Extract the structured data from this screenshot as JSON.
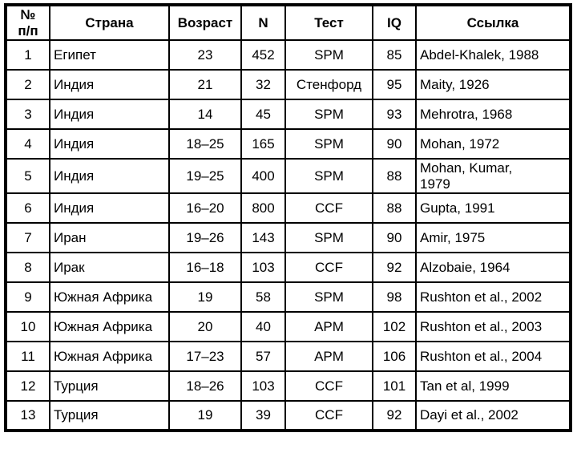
{
  "colors": {
    "background": "#ffffff",
    "border": "#000000",
    "text": "#000000"
  },
  "table": {
    "columns": [
      {
        "key": "num",
        "label": "№\nп/п"
      },
      {
        "key": "country",
        "label": "Страна"
      },
      {
        "key": "age",
        "label": "Возраст"
      },
      {
        "key": "n",
        "label": "N"
      },
      {
        "key": "test",
        "label": "Тест"
      },
      {
        "key": "iq",
        "label": "IQ"
      },
      {
        "key": "ref",
        "label": "Ссылка"
      }
    ],
    "rows": [
      {
        "num": "1",
        "country": "Египет",
        "age": "23",
        "n": "452",
        "test": "SPM",
        "iq": "85",
        "ref": "Abdel-Khalek, 1988"
      },
      {
        "num": "2",
        "country": "Индия",
        "age": "21",
        "n": "32",
        "test": "Стенфорд",
        "iq": "95",
        "ref": "Maity, 1926"
      },
      {
        "num": "3",
        "country": "Индия",
        "age": "14",
        "n": "45",
        "test": "SPM",
        "iq": "93",
        "ref": "Mehrotra, 1968"
      },
      {
        "num": "4",
        "country": "Индия",
        "age": "18–25",
        "n": "165",
        "test": "SPM",
        "iq": "90",
        "ref": "Mohan, 1972"
      },
      {
        "num": "5",
        "country": "Индия",
        "age": "19–25",
        "n": "400",
        "test": "SPM",
        "iq": "88",
        "ref": "Mohan, Kumar,\n1979"
      },
      {
        "num": "6",
        "country": "Индия",
        "age": "16–20",
        "n": "800",
        "test": "CCF",
        "iq": "88",
        "ref": "Gupta, 1991"
      },
      {
        "num": "7",
        "country": "Иран",
        "age": "19–26",
        "n": "143",
        "test": "SPM",
        "iq": "90",
        "ref": "Amir, 1975"
      },
      {
        "num": "8",
        "country": "Ирак",
        "age": "16–18",
        "n": "103",
        "test": "CCF",
        "iq": "92",
        "ref": "Alzobaie, 1964"
      },
      {
        "num": "9",
        "country": "Южная Африка",
        "age": "19",
        "n": "58",
        "test": "SPM",
        "iq": "98",
        "ref": "Rushton et al., 2002"
      },
      {
        "num": "10",
        "country": "Южная Африка",
        "age": "20",
        "n": "40",
        "test": "APM",
        "iq": "102",
        "ref": "Rushton et al., 2003"
      },
      {
        "num": "11",
        "country": "Южная Африка",
        "age": "17–23",
        "n": "57",
        "test": "APM",
        "iq": "106",
        "ref": "Rushton et al., 2004"
      },
      {
        "num": "12",
        "country": "Турция",
        "age": "18–26",
        "n": "103",
        "test": "CCF",
        "iq": "101",
        "ref": "Tan et al, 1999"
      },
      {
        "num": "13",
        "country": "Турция",
        "age": "19",
        "n": "39",
        "test": "CCF",
        "iq": "92",
        "ref": "Dayi et al., 2002"
      }
    ]
  }
}
